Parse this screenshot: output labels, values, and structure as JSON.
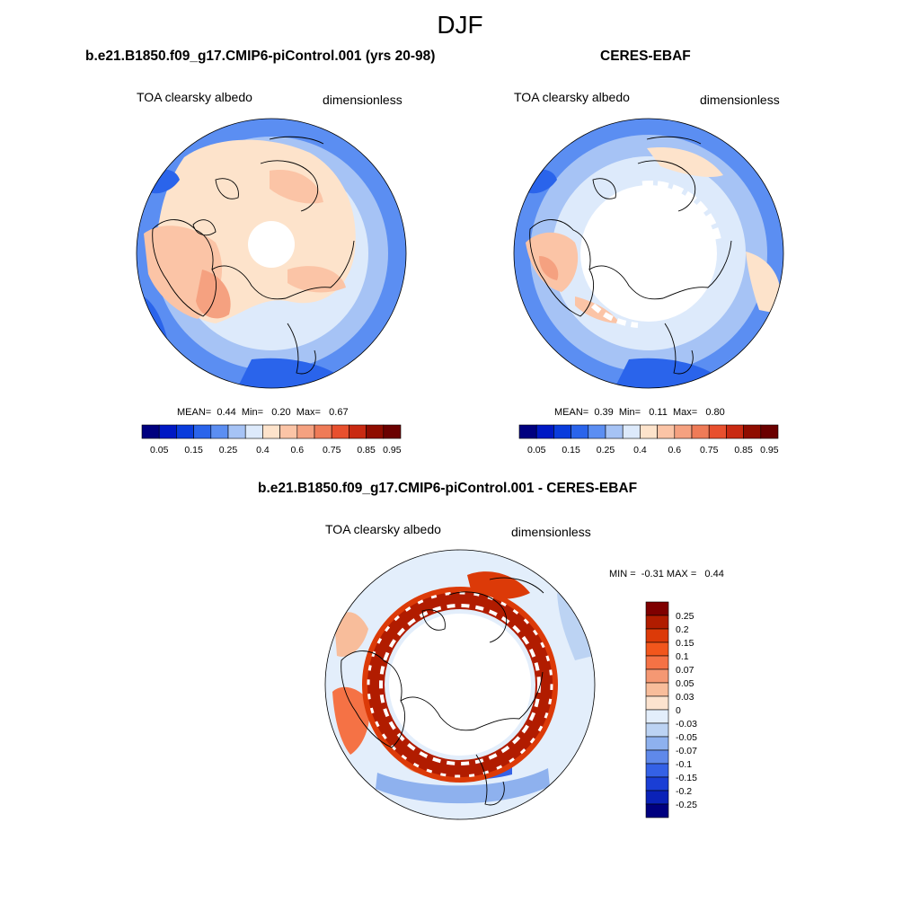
{
  "figure": {
    "title": "DJF"
  },
  "panels": [
    {
      "title": "b.e21.B1850.f09_g17.CMIP6-piControl.001 (yrs 20-98)",
      "variable": "TOA clearsky albedo",
      "units": "dimensionless",
      "stats": {
        "mean_label": "MEAN=",
        "mean": "0.44",
        "min_label": "Min=",
        "min": "0.20",
        "max_label": "Max=",
        "max": "0.67"
      }
    },
    {
      "title": "CERES-EBAF",
      "variable": "TOA clearsky albedo",
      "units": "dimensionless",
      "stats": {
        "mean_label": "MEAN=",
        "mean": "0.39",
        "min_label": "Min=",
        "min": "0.11",
        "max_label": "Max=",
        "max": "0.80"
      }
    },
    {
      "title": "b.e21.B1850.f09_g17.CMIP6-piControl.001 - CERES-EBAF",
      "variable": "TOA clearsky albedo",
      "units": "dimensionless",
      "stats": {
        "min_label": "MIN =",
        "min": "-0.31",
        "max_label": "MAX =",
        "max": "0.44"
      }
    }
  ],
  "colorbars": {
    "absolute": {
      "colors": [
        "#00007f",
        "#0019c4",
        "#0a3cdc",
        "#2a64eb",
        "#5b8ef2",
        "#a6c3f5",
        "#ddeafb",
        "#fde3cb",
        "#fbc4a6",
        "#f5a180",
        "#ef7b57",
        "#e8502e",
        "#c92a12",
        "#8f0c00",
        "#6b0000"
      ],
      "tick_labels": [
        "0.05",
        "0.15",
        "0.25",
        "0.4",
        "0.6",
        "0.75",
        "0.85",
        "0.95"
      ]
    },
    "difference": {
      "colors": [
        "#7f0000",
        "#b11c00",
        "#dc3a08",
        "#f2561c",
        "#f57245",
        "#f59873",
        "#f8bd9b",
        "#fce3cf",
        "#e3eefb",
        "#bcd3f3",
        "#8eb1ee",
        "#5f89ea",
        "#3461e6",
        "#1a3ed5",
        "#0a22b8",
        "#00007f"
      ],
      "tick_labels": [
        "0.25",
        "0.2",
        "0.15",
        "0.1",
        "0.07",
        "0.05",
        "0.03",
        "0",
        "-0.03",
        "-0.05",
        "-0.07",
        "-0.1",
        "-0.15",
        "-0.2",
        "-0.25"
      ]
    }
  }
}
